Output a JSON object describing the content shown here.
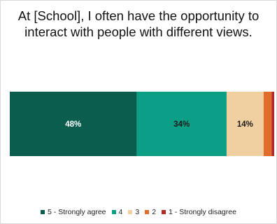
{
  "chart_data": {
    "type": "bar",
    "orientation": "horizontal",
    "stacked": true,
    "title": "At [School], I often have the opportunity to interact with people with different views.",
    "categories": [
      ""
    ],
    "xlim": [
      0,
      100
    ],
    "grid": false,
    "legend_position": "bottom",
    "series": [
      {
        "name": "5 - Strongly agree",
        "values": [
          48
        ],
        "label": "48%",
        "color": "#0b5e4e",
        "label_color": "#ffffff"
      },
      {
        "name": "4",
        "values": [
          34
        ],
        "label": "34%",
        "color": "#0d9e86",
        "label_color": "#1a1a1a"
      },
      {
        "name": "3",
        "values": [
          14
        ],
        "label": "14%",
        "color": "#f0d0a0",
        "label_color": "#1a1a1a"
      },
      {
        "name": "2",
        "values": [
          3
        ],
        "label": "",
        "color": "#e06e2a",
        "label_color": "#1a1a1a"
      },
      {
        "name": "1 - Strongly disagree",
        "values": [
          1
        ],
        "label": "",
        "color": "#b22a2a",
        "label_color": "#1a1a1a"
      }
    ]
  }
}
